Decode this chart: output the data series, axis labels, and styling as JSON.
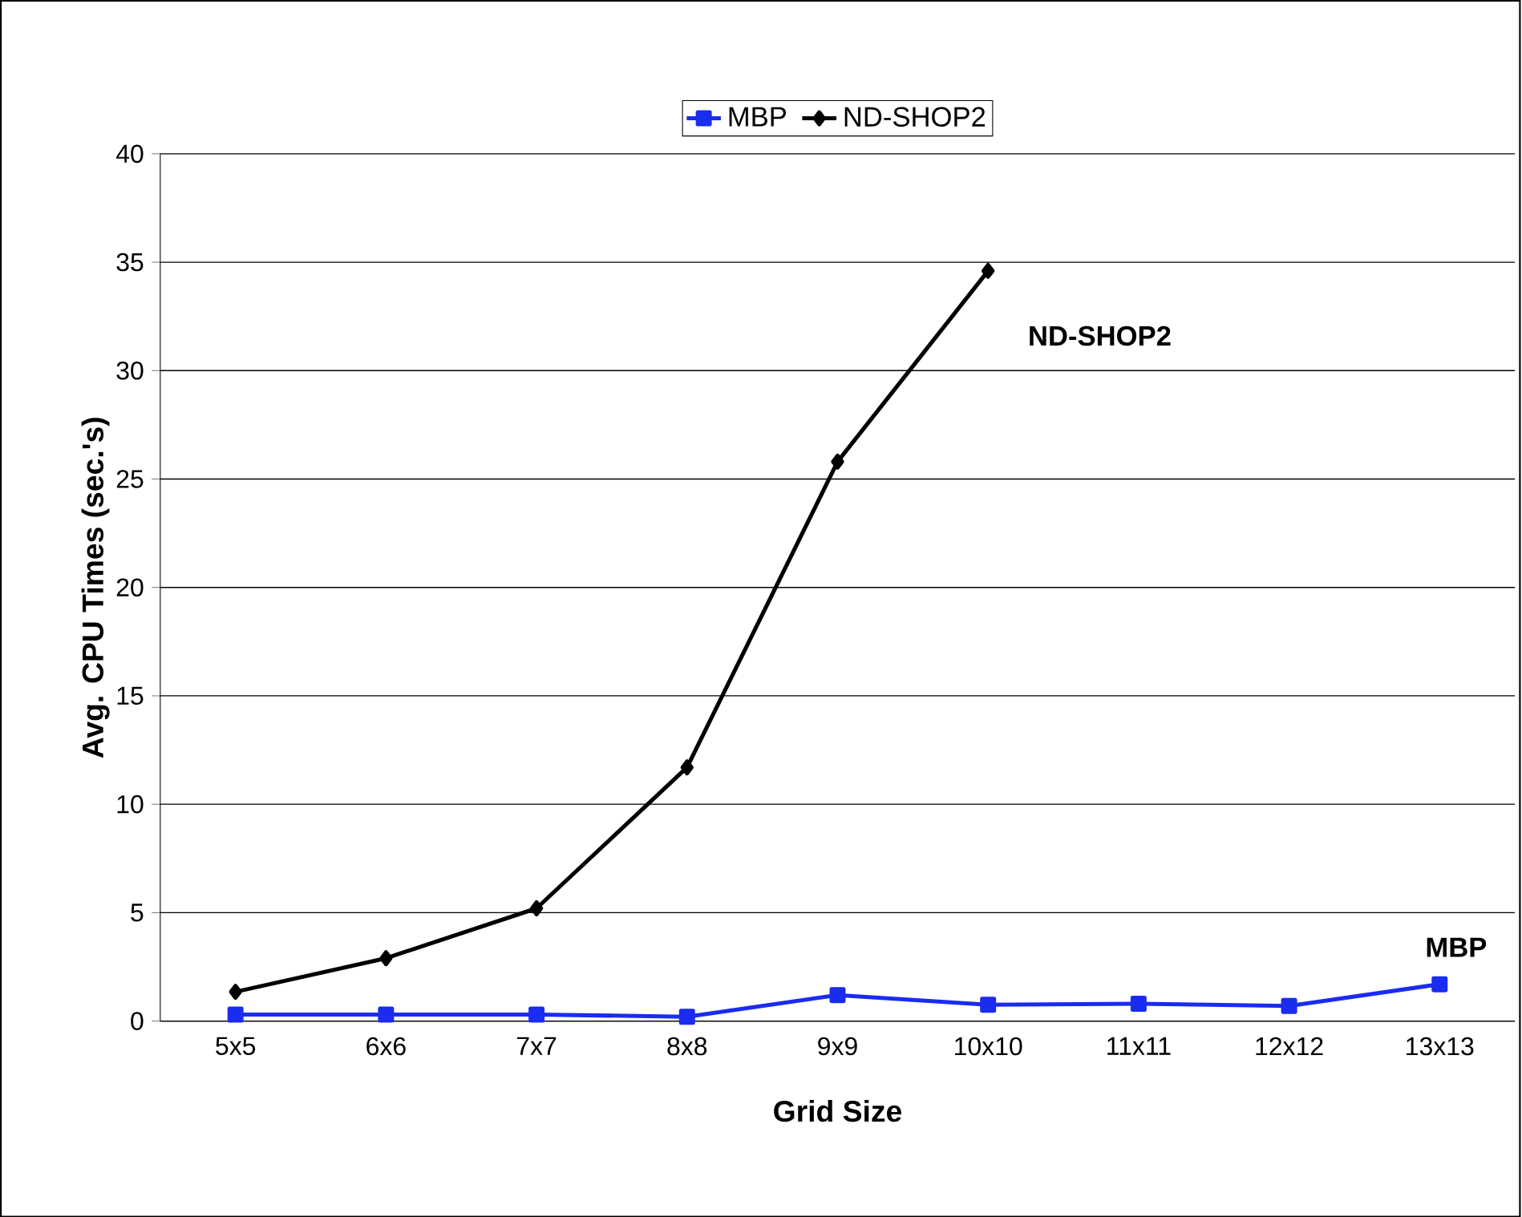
{
  "chart_data": {
    "type": "line",
    "xlabel": "Grid Size",
    "ylabel": "Avg. CPU Times (sec.'s)",
    "categories": [
      "5x5",
      "6x6",
      "7x7",
      "8x8",
      "9x9",
      "10x10",
      "11x11",
      "12x12",
      "13x13"
    ],
    "series": [
      {
        "name": "MBP",
        "color": "#1a2cf0",
        "marker": "square",
        "values": [
          0.3,
          0.3,
          0.3,
          0.2,
          1.2,
          0.75,
          0.8,
          0.7,
          1.7
        ]
      },
      {
        "name": "ND-SHOP2",
        "color": "#000000",
        "marker": "diamond",
        "values": [
          1.35,
          2.9,
          5.2,
          11.7,
          25.8,
          34.6,
          null,
          null,
          null
        ]
      }
    ],
    "annotations": [
      "ND-SHOP2",
      "MBP"
    ],
    "ylim": [
      0,
      40
    ],
    "yticks": [
      0,
      5,
      10,
      15,
      20,
      25,
      30,
      35,
      40
    ],
    "grid": "y",
    "legend": "top",
    "line_style": "solid"
  }
}
